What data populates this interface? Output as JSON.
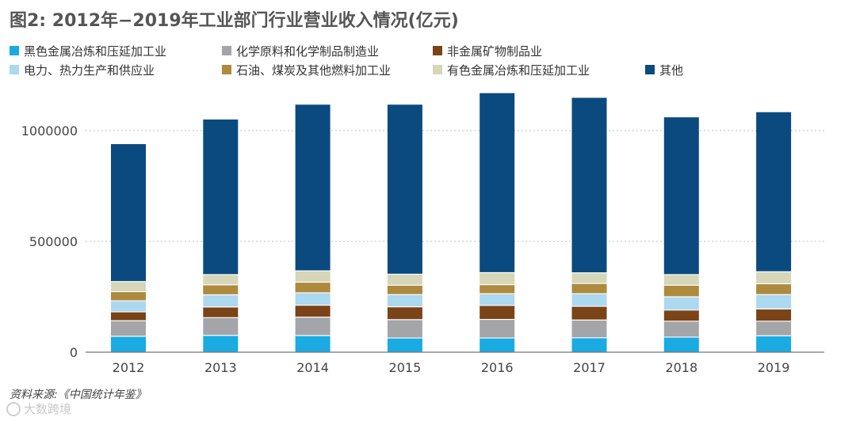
{
  "title": "图2: 2012年−2019年工业部门行业营业收入情况(亿元)",
  "source": "资料来源:《中国统计年鉴》",
  "watermark": "大数跨境",
  "chart_data": {
    "type": "bar",
    "stacked": true,
    "title": "图2: 2012年−2019年工业部门行业营业收入情况(亿元)",
    "xlabel": "",
    "ylabel": "",
    "ylim": [
      0,
      1200000
    ],
    "yticks": [
      0,
      500000,
      1000000
    ],
    "ytick_labels": [
      "0",
      "500000",
      "1000000"
    ],
    "grid": true,
    "legend_position": "top",
    "categories": [
      "2012",
      "2013",
      "2014",
      "2015",
      "2016",
      "2017",
      "2018",
      "2019"
    ],
    "series": [
      {
        "name": "黑色金属冶炼和压延加工业",
        "color": "#1aabe2",
        "values": [
          72000,
          76000,
          75000,
          64000,
          64000,
          65000,
          68000,
          74000
        ]
      },
      {
        "name": "化学原料和化学制品制造业",
        "color": "#a3a5a8",
        "values": [
          70000,
          80000,
          83000,
          83000,
          84000,
          80000,
          72000,
          66000
        ]
      },
      {
        "name": "非金属矿物制品业",
        "color": "#7a4418",
        "values": [
          40000,
          48000,
          54000,
          58000,
          63000,
          62000,
          50000,
          55000
        ]
      },
      {
        "name": "电力、热力生产和供应业",
        "color": "#acd8f0",
        "values": [
          50000,
          55000,
          56000,
          55000,
          53000,
          57000,
          60000,
          65000
        ]
      },
      {
        "name": "石油、煤炭及其他燃料加工业",
        "color": "#ad8a3e",
        "values": [
          41000,
          45000,
          48000,
          42000,
          41000,
          46000,
          52000,
          49000
        ]
      },
      {
        "name": "有色金属冶炼和压延加工业",
        "color": "#d6d6b8",
        "values": [
          46000,
          46000,
          51000,
          50000,
          54000,
          48000,
          48000,
          54000
        ]
      },
      {
        "name": "其他",
        "color": "#0a4a7f",
        "values": [
          620000,
          700000,
          750000,
          765000,
          810000,
          790000,
          710000,
          720000
        ]
      }
    ]
  }
}
